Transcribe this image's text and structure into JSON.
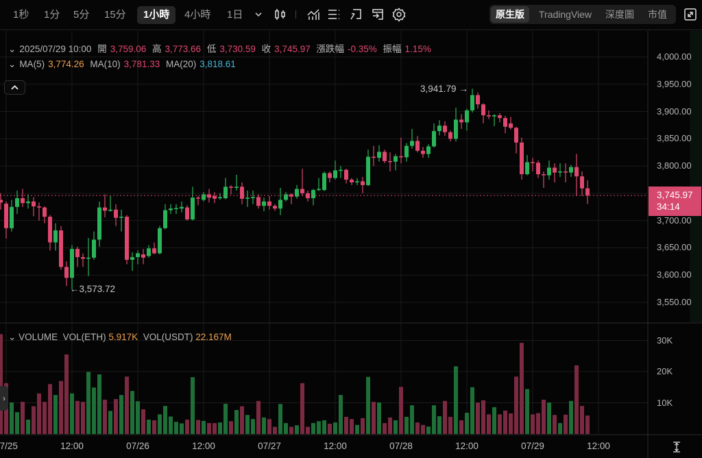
{
  "toolbar": {
    "intervals": [
      "1秒",
      "1分",
      "5分",
      "15分",
      "1小時",
      "4小時",
      "1日"
    ],
    "active_interval": "1小時",
    "icons": [
      "chevron-down-icon",
      "candlestick-type-icon",
      "indicators-icon",
      "list-settings-icon",
      "drawing-tool-icon",
      "template-icon",
      "gear-icon"
    ],
    "views": [
      "原生版",
      "TradingView",
      "深度圖",
      "市值"
    ],
    "active_view": "原生版",
    "fullscreen_icon": "fullscreen-icon"
  },
  "legend": {
    "datetime": "2025/07/29 10:00",
    "open_label": "開",
    "open": "3,759.06",
    "high_label": "高",
    "high": "3,773.66",
    "low_label": "低",
    "low": "3,730.59",
    "close_label": "收",
    "close": "3,745.97",
    "change_label": "漲跌幅",
    "change": "-0.35%",
    "amplitude_label": "振幅",
    "amplitude": "1.15%",
    "ma5_label": "MA(5)",
    "ma5": "3,774.26",
    "ma10_label": "MA(10)",
    "ma10": "3,781.33",
    "ma20_label": "MA(20)",
    "ma20": "3,818.61"
  },
  "volume_legend": {
    "title": "VOLUME",
    "eth_label": "VOL(ETH)",
    "eth": "5.917K",
    "usdt_label": "VOL(USDT)",
    "usdt": "22.167M"
  },
  "price_tag": {
    "price": "3,745.97",
    "countdown": "34:14"
  },
  "colors": {
    "up": "#2bb55a",
    "down": "#e04870",
    "up_volume": "#1f7038",
    "down_volume": "#7c2a42",
    "grid": "#1b1b1b",
    "tag": "#d6486e"
  },
  "chart_data": {
    "type": "candlestick",
    "interval": "1小時",
    "price_axis": {
      "ticks": [
        "4,000.00",
        "3,950.00",
        "3,900.00",
        "3,850.00",
        "3,800.00",
        "3,700.00",
        "3,650.00",
        "3,600.00",
        "3,550.00"
      ],
      "range": [
        3535,
        4020
      ]
    },
    "volume_axis": {
      "ticks": [
        "30K",
        "20K",
        "10K"
      ],
      "range": [
        0,
        35
      ]
    },
    "x_ticks": [
      "07/25",
      "12:00",
      "07/26",
      "12:00",
      "07/27",
      "12:00",
      "07/28",
      "12:00",
      "07/29",
      "12:00"
    ],
    "last_candle_time": "2025/07/29 10:00",
    "annotations": {
      "high": "3,941.79",
      "low": "3,573.72"
    },
    "last_price": 3745.97,
    "grid": true,
    "fields": [
      "open",
      "high",
      "low",
      "close",
      "volume_k_eth"
    ],
    "candles": [
      [
        3738,
        3750,
        3720,
        3733,
        32
      ],
      [
        3731,
        3735,
        3667,
        3686,
        16.3
      ],
      [
        3686,
        3738,
        3680,
        3725,
        10.1
      ],
      [
        3725,
        3755,
        3712,
        3741,
        7
      ],
      [
        3741,
        3758,
        3725,
        3732,
        10.3
      ],
      [
        3732,
        3748,
        3722,
        3735,
        4.6
      ],
      [
        3735,
        3743,
        3708,
        3726,
        8.9
      ],
      [
        3726,
        3733,
        3700,
        3724,
        13
      ],
      [
        3724,
        3726,
        3695,
        3707,
        10.3
      ],
      [
        3707,
        3710,
        3645,
        3660,
        16
      ],
      [
        3660,
        3695,
        3645,
        3682,
        12.5
      ],
      [
        3682,
        3690,
        3610,
        3615,
        17
      ],
      [
        3615,
        3625,
        3580,
        3595,
        25.5
      ],
      [
        3595,
        3655,
        3573.72,
        3648,
        13
      ],
      [
        3648,
        3652,
        3615,
        3633,
        10.6
      ],
      [
        3633,
        3640,
        3615,
        3630,
        10.3
      ],
      [
        3630,
        3668,
        3598,
        3632,
        19.9
      ],
      [
        3632,
        3680,
        3628,
        3665,
        14.9
      ],
      [
        3665,
        3735,
        3652,
        3724,
        19.1
      ],
      [
        3724,
        3748,
        3706,
        3718,
        11
      ],
      [
        3718,
        3745,
        3716,
        3720,
        7.4
      ],
      [
        3720,
        3730,
        3690,
        3705,
        11.2
      ],
      [
        3705,
        3720,
        3680,
        3707,
        12.5
      ],
      [
        3707,
        3710,
        3620,
        3628,
        18.4
      ],
      [
        3628,
        3642,
        3608,
        3633,
        13.8
      ],
      [
        3633,
        3645,
        3620,
        3640,
        10.5
      ],
      [
        3638,
        3648,
        3620,
        3632,
        7.9
      ],
      [
        3635,
        3655,
        3632,
        3649,
        4.6
      ],
      [
        3649,
        3660,
        3638,
        3640,
        4.4
      ],
      [
        3640,
        3690,
        3638,
        3686,
        6.3
      ],
      [
        3686,
        3730,
        3684,
        3719,
        9
      ],
      [
        3719,
        3730,
        3712,
        3722,
        5.6
      ],
      [
        3722,
        3730,
        3712,
        3723,
        3.9
      ],
      [
        3722,
        3735,
        3715,
        3725,
        3.4
      ],
      [
        3724,
        3728,
        3700,
        3702,
        4.6
      ],
      [
        3702,
        3762,
        3700,
        3742,
        18.2
      ],
      [
        3742,
        3745,
        3728,
        3740,
        4.5
      ],
      [
        3738,
        3752,
        3735,
        3748,
        4.2
      ],
      [
        3748,
        3758,
        3733,
        3742,
        3.5
      ],
      [
        3745,
        3752,
        3732,
        3740,
        3.5
      ],
      [
        3741,
        3750,
        3738,
        3743,
        3.7
      ],
      [
        3741,
        3778,
        3739,
        3762,
        9.7
      ],
      [
        3762,
        3765,
        3748,
        3760,
        4.1
      ],
      [
        3760,
        3784,
        3755,
        3762,
        7.7
      ],
      [
        3762,
        3770,
        3730,
        3740,
        8.9
      ],
      [
        3740,
        3755,
        3725,
        3742,
        6.1
      ],
      [
        3741,
        3755,
        3730,
        3743,
        4.8
      ],
      [
        3743,
        3748,
        3722,
        3727,
        10.6
      ],
      [
        3727,
        3742,
        3717,
        3735,
        5.3
      ],
      [
        3735,
        3745,
        3720,
        3727,
        4.8
      ],
      [
        3727,
        3730,
        3718,
        3722,
        2.3
      ],
      [
        3722,
        3760,
        3710,
        3738,
        9.6
      ],
      [
        3738,
        3752,
        3735,
        3748,
        3.5
      ],
      [
        3748,
        3750,
        3730,
        3744,
        2.3
      ],
      [
        3744,
        3765,
        3740,
        3758,
        2.8
      ],
      [
        3758,
        3795,
        3745,
        3750,
        16.3
      ],
      [
        3750,
        3755,
        3735,
        3741,
        2.3
      ],
      [
        3741,
        3758,
        3728,
        3756,
        3.5
      ],
      [
        3756,
        3778,
        3754,
        3758,
        4.1
      ],
      [
        3756,
        3790,
        3754,
        3787,
        4.4
      ],
      [
        3787,
        3790,
        3770,
        3778,
        3.3
      ],
      [
        3778,
        3810,
        3775,
        3792,
        3.7
      ],
      [
        3792,
        3800,
        3778,
        3793,
        12.5
      ],
      [
        3793,
        3795,
        3768,
        3775,
        5.5
      ],
      [
        3775,
        3778,
        3765,
        3770,
        4.8
      ],
      [
        3770,
        3778,
        3765,
        3772,
        2.9
      ],
      [
        3772,
        3780,
        3750,
        3765,
        5.1
      ],
      [
        3765,
        3830,
        3763,
        3817,
        18.3
      ],
      [
        3817,
        3837,
        3800,
        3815,
        10.3
      ],
      [
        3815,
        3838,
        3808,
        3826,
        10.1
      ],
      [
        3826,
        3830,
        3805,
        3809,
        3.5
      ],
      [
        3809,
        3825,
        3790,
        3808,
        5.3
      ],
      [
        3808,
        3822,
        3792,
        3818,
        4.4
      ],
      [
        3818,
        3852,
        3805,
        3816,
        15.1
      ],
      [
        3816,
        3842,
        3808,
        3837,
        5.5
      ],
      [
        3837,
        3868,
        3832,
        3846,
        9.2
      ],
      [
        3846,
        3855,
        3825,
        3828,
        3.7
      ],
      [
        3828,
        3835,
        3815,
        3822,
        2.9
      ],
      [
        3822,
        3840,
        3815,
        3836,
        2.4
      ],
      [
        3836,
        3878,
        3834,
        3864,
        9.2
      ],
      [
        3864,
        3884,
        3856,
        3874,
        5.7
      ],
      [
        3874,
        3882,
        3855,
        3862,
        10.6
      ],
      [
        3862,
        3865,
        3845,
        3850,
        5.5
      ],
      [
        3850,
        3907,
        3845,
        3885,
        21.7
      ],
      [
        3885,
        3895,
        3868,
        3880,
        4.4
      ],
      [
        3880,
        3905,
        3865,
        3902,
        6.8
      ],
      [
        3902,
        3941.79,
        3898,
        3930,
        15
      ],
      [
        3930,
        3935,
        3905,
        3913,
        10.1
      ],
      [
        3913,
        3915,
        3878,
        3893,
        10.8
      ],
      [
        3893,
        3902,
        3886,
        3891,
        6.3
      ],
      [
        3891,
        3895,
        3873,
        3893,
        8.6
      ],
      [
        3893,
        3897,
        3880,
        3888,
        6.3
      ],
      [
        3888,
        3892,
        3860,
        3872,
        7.5
      ],
      [
        3878,
        3890,
        3867,
        3870,
        6.6
      ],
      [
        3870,
        3872,
        3823,
        3843,
        18.4
      ],
      [
        3843,
        3852,
        3775,
        3785,
        29.2
      ],
      [
        3785,
        3820,
        3783,
        3807,
        14.4
      ],
      [
        3807,
        3815,
        3790,
        3806,
        6.3
      ],
      [
        3806,
        3810,
        3778,
        3785,
        6.7
      ],
      [
        3785,
        3790,
        3760,
        3783,
        11
      ],
      [
        3783,
        3810,
        3775,
        3797,
        10.1
      ],
      [
        3797,
        3805,
        3770,
        3788,
        6.1
      ],
      [
        3788,
        3805,
        3780,
        3790,
        3.5
      ],
      [
        3790,
        3805,
        3770,
        3788,
        6.2
      ],
      [
        3788,
        3802,
        3780,
        3798,
        10.6
      ],
      [
        3798,
        3822,
        3745,
        3781,
        22
      ],
      [
        3781,
        3790,
        3745,
        3759,
        9
      ],
      [
        3759.06,
        3773.66,
        3730.59,
        3745.97,
        5.917
      ]
    ]
  }
}
